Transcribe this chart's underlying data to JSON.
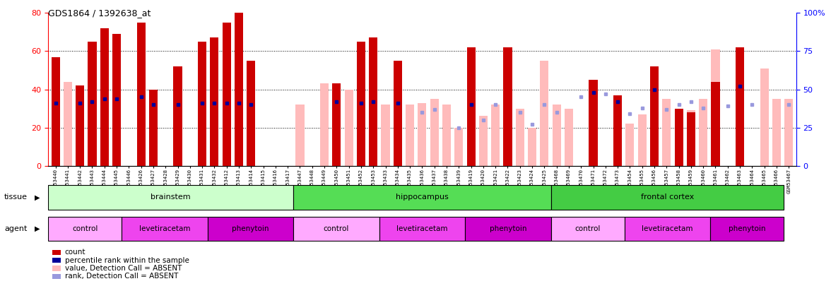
{
  "title": "GDS1864 / 1392638_at",
  "samples": [
    "GSM53440",
    "GSM53441",
    "GSM53442",
    "GSM53443",
    "GSM53444",
    "GSM53445",
    "GSM53446",
    "GSM53426",
    "GSM53427",
    "GSM53428",
    "GSM53429",
    "GSM53430",
    "GSM53431",
    "GSM53432",
    "GSM53412",
    "GSM53413",
    "GSM53414",
    "GSM53415",
    "GSM53416",
    "GSM53417",
    "GSM53447",
    "GSM53448",
    "GSM53449",
    "GSM53450",
    "GSM53451",
    "GSM53452",
    "GSM53453",
    "GSM53433",
    "GSM53434",
    "GSM53435",
    "GSM53436",
    "GSM53437",
    "GSM53438",
    "GSM53439",
    "GSM53419",
    "GSM53420",
    "GSM53421",
    "GSM53422",
    "GSM53423",
    "GSM53424",
    "GSM53425",
    "GSM53468",
    "GSM53469",
    "GSM53470",
    "GSM53471",
    "GSM53472",
    "GSM53473",
    "GSM53454",
    "GSM53455",
    "GSM53456",
    "GSM53457",
    "GSM53458",
    "GSM53459",
    "GSM53460",
    "GSM53461",
    "GSM53462",
    "GSM53463",
    "GSM53464",
    "GSM53465",
    "GSM53466",
    "GSM53467"
  ],
  "count_values": [
    57,
    0,
    42,
    65,
    72,
    69,
    0,
    75,
    40,
    0,
    52,
    0,
    65,
    67,
    75,
    80,
    55,
    0,
    0,
    0,
    0,
    0,
    0,
    43,
    0,
    65,
    67,
    0,
    55,
    0,
    0,
    0,
    0,
    0,
    62,
    0,
    0,
    62,
    0,
    0,
    0,
    0,
    0,
    0,
    45,
    0,
    37,
    0,
    0,
    52,
    0,
    30,
    28,
    0,
    44,
    0,
    62,
    0,
    0,
    0,
    0
  ],
  "absent_value_values": [
    0,
    44,
    0,
    0,
    0,
    0,
    0,
    0,
    0,
    0,
    0,
    0,
    0,
    0,
    0,
    0,
    0,
    0,
    0,
    0,
    32,
    0,
    43,
    0,
    40,
    0,
    0,
    32,
    0,
    32,
    33,
    35,
    32,
    20,
    0,
    26,
    32,
    0,
    30,
    20,
    55,
    32,
    30,
    0,
    0,
    0,
    0,
    22,
    27,
    0,
    35,
    30,
    29,
    35,
    61,
    0,
    0,
    0,
    51,
    35,
    35
  ],
  "percentile_rank": [
    41,
    0,
    41,
    42,
    44,
    44,
    0,
    45,
    40,
    0,
    40,
    0,
    41,
    41,
    41,
    41,
    40,
    0,
    0,
    0,
    0,
    0,
    0,
    42,
    0,
    41,
    42,
    0,
    41,
    0,
    0,
    0,
    0,
    0,
    40,
    0,
    0,
    0,
    0,
    0,
    0,
    0,
    0,
    0,
    48,
    0,
    42,
    0,
    0,
    50,
    0,
    0,
    0,
    0,
    0,
    0,
    52,
    0,
    0,
    0,
    0
  ],
  "absent_rank_values": [
    0,
    0,
    0,
    0,
    0,
    0,
    0,
    0,
    0,
    0,
    0,
    0,
    0,
    0,
    0,
    0,
    0,
    0,
    0,
    0,
    0,
    0,
    0,
    0,
    0,
    0,
    0,
    0,
    0,
    0,
    35,
    37,
    0,
    25,
    0,
    30,
    40,
    0,
    35,
    27,
    40,
    35,
    0,
    45,
    0,
    47,
    0,
    34,
    38,
    0,
    37,
    40,
    42,
    38,
    0,
    39,
    0,
    40,
    0,
    0,
    40
  ],
  "tissue_regions": [
    {
      "label": "brainstem",
      "start": 0,
      "end": 20,
      "color": "#ccffcc"
    },
    {
      "label": "hippocampus",
      "start": 20,
      "end": 41,
      "color": "#55dd55"
    },
    {
      "label": "frontal cortex",
      "start": 41,
      "end": 60,
      "color": "#44cc44"
    }
  ],
  "agent_regions": [
    {
      "label": "control",
      "start": 0,
      "end": 6,
      "color": "#ffaaff"
    },
    {
      "label": "levetiracetam",
      "start": 6,
      "end": 13,
      "color": "#ee44ee"
    },
    {
      "label": "phenytoin",
      "start": 13,
      "end": 20,
      "color": "#cc00cc"
    },
    {
      "label": "control",
      "start": 20,
      "end": 27,
      "color": "#ffaaff"
    },
    {
      "label": "levetiracetam",
      "start": 27,
      "end": 34,
      "color": "#ee44ee"
    },
    {
      "label": "phenytoin",
      "start": 34,
      "end": 41,
      "color": "#cc00cc"
    },
    {
      "label": "control",
      "start": 41,
      "end": 47,
      "color": "#ffaaff"
    },
    {
      "label": "levetiracetam",
      "start": 47,
      "end": 54,
      "color": "#ee44ee"
    },
    {
      "label": "phenytoin",
      "start": 54,
      "end": 60,
      "color": "#cc00cc"
    }
  ],
  "ylim_left": [
    0,
    80
  ],
  "ylim_right": [
    0,
    100
  ],
  "yticks_left": [
    0,
    20,
    40,
    60,
    80
  ],
  "yticks_right": [
    0,
    25,
    50,
    75,
    100
  ],
  "bar_color": "#cc0000",
  "absent_bar_color": "#ffbbbb",
  "rank_color": "#000099",
  "absent_rank_color": "#9999dd",
  "grid_lines": [
    20,
    40,
    60
  ]
}
